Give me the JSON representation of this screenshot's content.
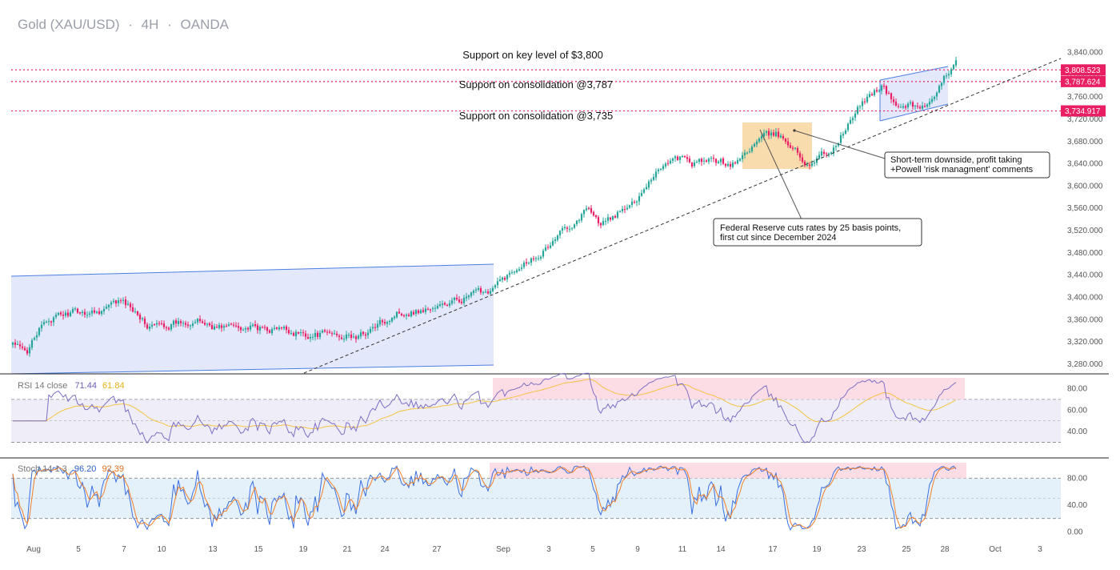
{
  "header": {
    "title": "Gold (XAU/USD)",
    "sep": "·",
    "timeframe": "4H",
    "source": "OANDA"
  },
  "chart_data": {
    "type": "candlestick",
    "y_axis": {
      "min": 3270,
      "max": 3855,
      "ticks": [
        "3,840.000",
        "3,800.000",
        "3,760.000",
        "3,720.000",
        "3,680.000",
        "3,640.000",
        "3,600.000",
        "3,560.000",
        "3,520.000",
        "3,480.000",
        "3,440.000",
        "3,400.000",
        "3,360.000",
        "3,320.000",
        "3,280.000"
      ],
      "tick_values": [
        3840,
        3800,
        3760,
        3720,
        3680,
        3640,
        3600,
        3560,
        3520,
        3480,
        3440,
        3400,
        3360,
        3320,
        3280
      ]
    },
    "x_axis": {
      "labels": [
        "Aug",
        "5",
        "7",
        "10",
        "13",
        "15",
        "19",
        "21",
        "24",
        "27",
        "Sep",
        "3",
        "5",
        "9",
        "11",
        "14",
        "17",
        "19",
        "23",
        "25",
        "28",
        "Oct",
        "3"
      ]
    },
    "levels": [
      {
        "value": 3808.523,
        "label": "3,808.523",
        "text": "Support on key level of $3,800"
      },
      {
        "value": 3787.624,
        "label": "3,787.624",
        "text": "Support on consolidation @3,787"
      },
      {
        "value": 3734.917,
        "label": "3,734.917",
        "text": "Support on consolidation @3,735"
      }
    ],
    "colors": {
      "up": "#26a69a",
      "down": "#e91e63",
      "level_line": "#e91e63",
      "channel_line": "#4a7fe0",
      "channel_fill": "#e4e8fb",
      "highlight_fill": "#f9dcae",
      "rsi_line": "#7e6fc4",
      "rsi_ma": "#f5c342",
      "stoch_k": "#3a6fe0",
      "stoch_d": "#f07f2a",
      "overbought_fill": "#fcdde6"
    },
    "path_anchors": [
      [
        0,
        3318
      ],
      [
        6,
        3296
      ],
      [
        8,
        3330
      ],
      [
        15,
        3360
      ],
      [
        25,
        3373
      ],
      [
        35,
        3375
      ],
      [
        45,
        3392
      ],
      [
        52,
        3376
      ],
      [
        56,
        3348
      ],
      [
        65,
        3350
      ],
      [
        75,
        3360
      ],
      [
        85,
        3347
      ],
      [
        95,
        3349
      ],
      [
        103,
        3343
      ],
      [
        110,
        3343
      ],
      [
        125,
        3332
      ],
      [
        135,
        3335
      ],
      [
        143,
        3327
      ],
      [
        150,
        3344
      ],
      [
        160,
        3374
      ],
      [
        170,
        3377
      ],
      [
        180,
        3386
      ],
      [
        190,
        3402
      ],
      [
        200,
        3417
      ],
      [
        207,
        3442
      ],
      [
        211,
        3460
      ],
      [
        217,
        3475
      ],
      [
        223,
        3490
      ],
      [
        230,
        3525
      ],
      [
        236,
        3545
      ],
      [
        240,
        3565
      ],
      [
        245,
        3530
      ],
      [
        252,
        3550
      ],
      [
        258,
        3565
      ],
      [
        263,
        3598
      ],
      [
        268,
        3628
      ],
      [
        273,
        3646
      ],
      [
        278,
        3650
      ],
      [
        283,
        3639
      ],
      [
        288,
        3643
      ],
      [
        293,
        3644
      ],
      [
        300,
        3640
      ],
      [
        303,
        3648
      ],
      [
        308,
        3672
      ],
      [
        313,
        3688
      ],
      [
        318,
        3692
      ],
      [
        323,
        3680
      ],
      [
        327,
        3660
      ],
      [
        330,
        3640
      ],
      [
        334,
        3648
      ],
      [
        338,
        3658
      ],
      [
        342,
        3668
      ],
      [
        346,
        3695
      ],
      [
        350,
        3722
      ],
      [
        354,
        3750
      ],
      [
        358,
        3768
      ],
      [
        362,
        3780
      ],
      [
        365,
        3762
      ],
      [
        368,
        3742
      ],
      [
        372,
        3746
      ],
      [
        376,
        3745
      ],
      [
        380,
        3744
      ],
      [
        383,
        3750
      ],
      [
        385,
        3760
      ],
      [
        388,
        3790
      ],
      [
        391,
        3815
      ],
      [
        393,
        3830
      ]
    ],
    "rsi": {
      "label": "RSI 14 close",
      "value": "71.44",
      "ma_value": "61.84",
      "ticks": [
        "80.00",
        "60.00",
        "40.00"
      ],
      "tick_values": [
        80,
        60,
        40
      ],
      "overbought": 70,
      "oversold": 30
    },
    "stoch": {
      "label": "Stoch 14 1 3",
      "k_value": "96.20",
      "d_value": "92.39",
      "ticks": [
        "80.00",
        "40.00",
        "0.00"
      ],
      "tick_values": [
        80,
        40,
        0
      ],
      "upper": 80,
      "lower": 20
    },
    "annotations": [
      {
        "id": "fed",
        "text_lines": [
          "Federal Reserve cuts rates by 25 basis points,",
          "first cut since December 2024"
        ]
      },
      {
        "id": "short",
        "text_lines": [
          "Short-term downside, profit taking",
          "+Powell 'risk managment' comments"
        ]
      }
    ]
  }
}
